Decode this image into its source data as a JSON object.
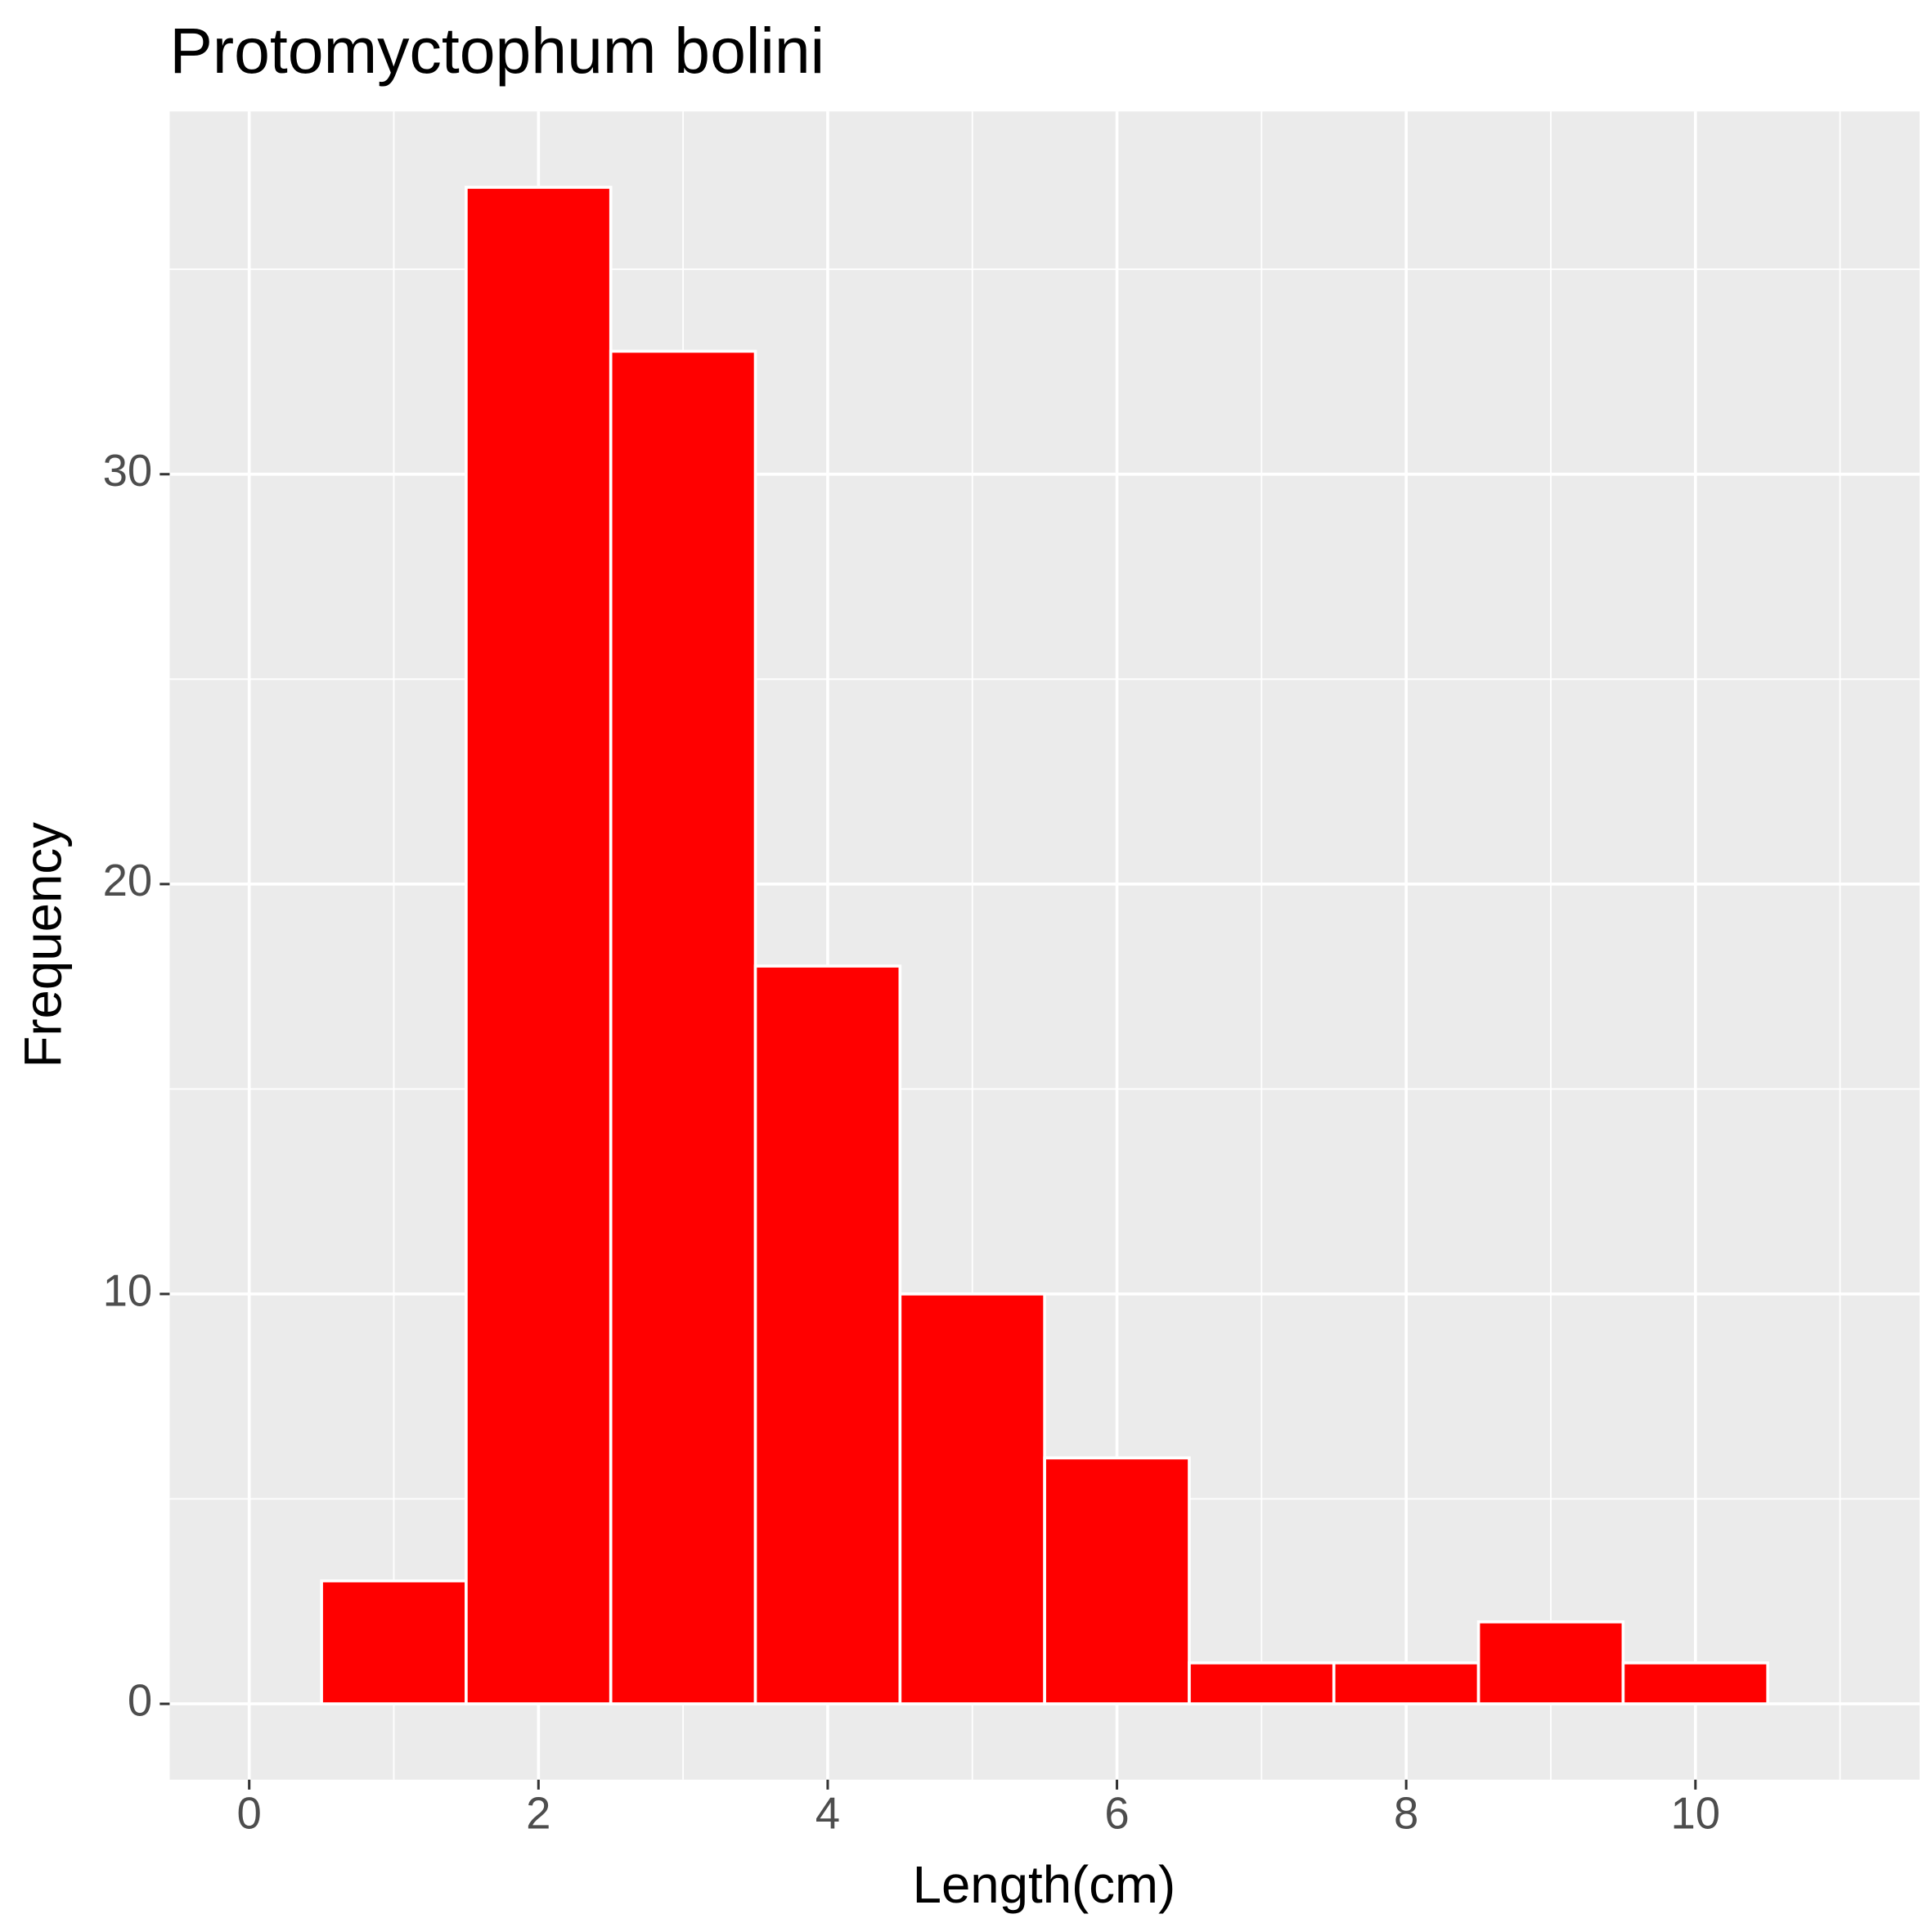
{
  "chart_data": {
    "type": "histogram",
    "title": "Protomyctophum bolini",
    "x_label": "Length(cm)",
    "y_label": "Frequency",
    "bins": [
      0.5,
      1.5,
      2.5,
      3.5,
      4.5,
      5.5,
      6.5,
      7.5,
      8.5,
      9.5,
      10.5
    ],
    "counts": [
      3,
      37,
      33,
      18,
      10,
      6,
      1,
      1,
      2,
      1
    ],
    "color": "#ff0000",
    "edge_color": "#ffffff",
    "xlim": [
      -0.55,
      11.55
    ],
    "ylim": [
      -1.85,
      38.85
    ],
    "xticks": [
      0,
      2,
      4,
      6,
      8,
      10
    ],
    "yticks": [
      0,
      10,
      20,
      30
    ],
    "x_minor_ticks": [
      1,
      3,
      5,
      7,
      9,
      11
    ],
    "y_minor_ticks": [
      5,
      15,
      25,
      35
    ],
    "grid": true
  }
}
